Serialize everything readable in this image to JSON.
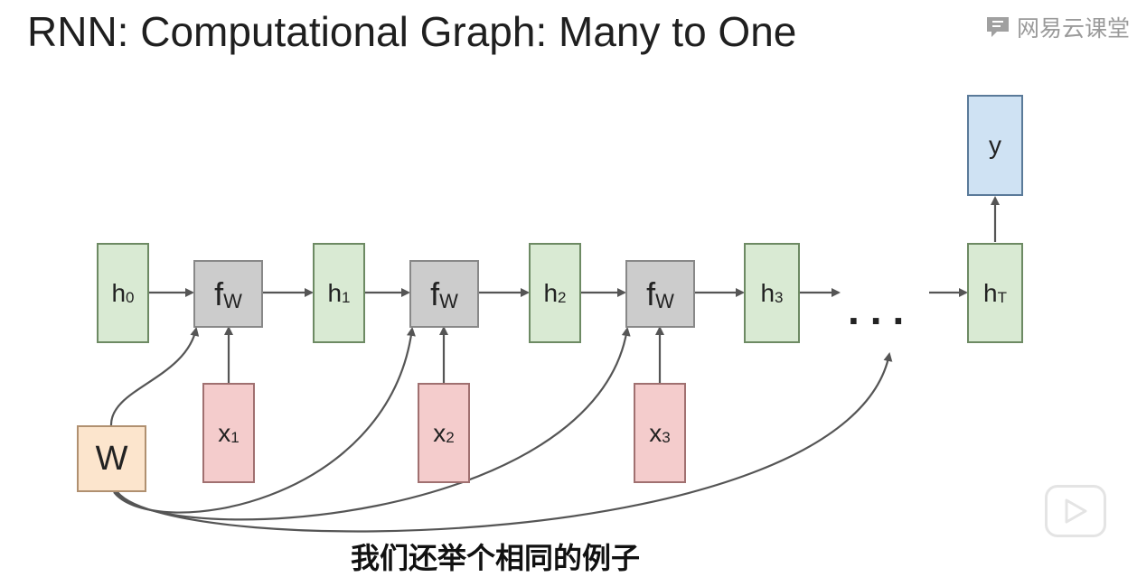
{
  "title": "RNN: Computational Graph: Many to One",
  "watermark": {
    "text": "网易云课堂",
    "icon": "chat-bubble-logo-icon"
  },
  "nodes": {
    "h0": {
      "main": "h",
      "sub": "0"
    },
    "fw1": {
      "main": "f",
      "sub": "W"
    },
    "h1": {
      "main": "h",
      "sub": "1"
    },
    "fw2": {
      "main": "f",
      "sub": "W"
    },
    "h2": {
      "main": "h",
      "sub": "2"
    },
    "fw3": {
      "main": "f",
      "sub": "W"
    },
    "h3": {
      "main": "h",
      "sub": "3"
    },
    "hT": {
      "main": "h",
      "sub": "T"
    },
    "y": {
      "main": "y"
    },
    "x1": {
      "main": "x",
      "sub": "1"
    },
    "x2": {
      "main": "x",
      "sub": "2"
    },
    "x3": {
      "main": "x",
      "sub": "3"
    },
    "W": {
      "main": "W"
    }
  },
  "ellipsis": "...",
  "subtitle": "我们还举个相同的例子",
  "colors": {
    "hidden": "#d9ead3",
    "function": "#cccccc",
    "input": "#f4cccc",
    "output": "#cfe2f3",
    "weights": "#fce5cd",
    "arrow": "#555555"
  },
  "icons": {
    "play": "play-icon"
  }
}
